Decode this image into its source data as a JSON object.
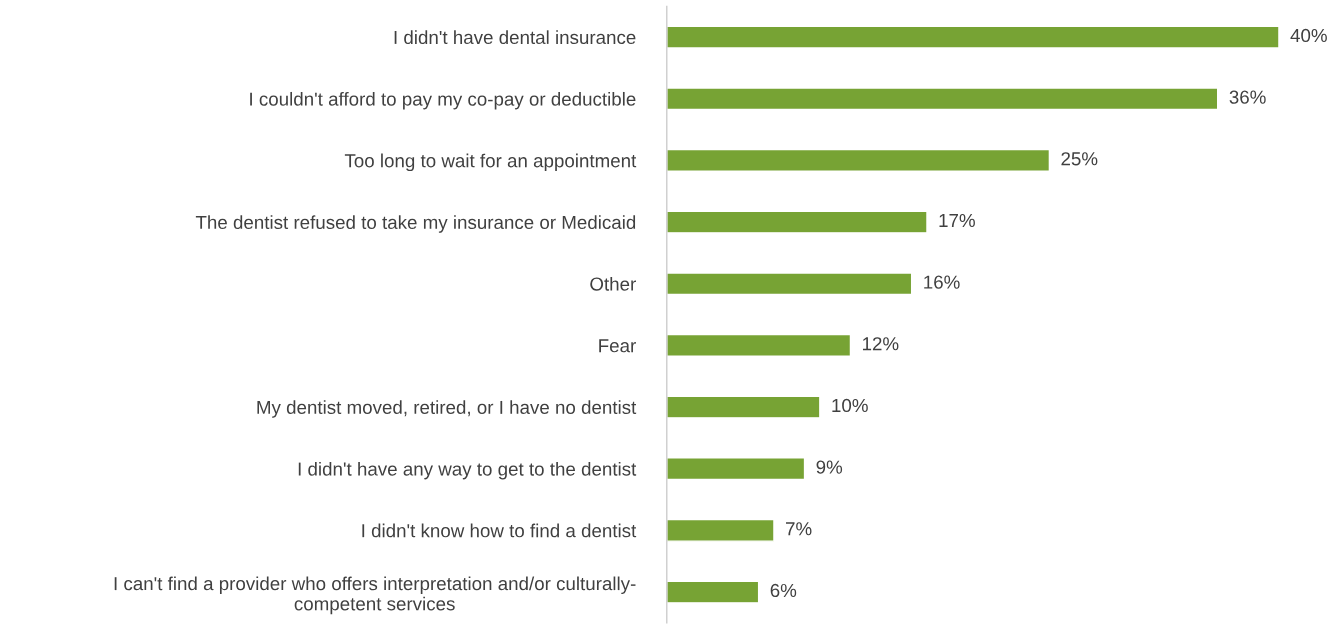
{
  "chart_data": {
    "type": "bar",
    "orientation": "horizontal",
    "categories": [
      "I didn't have dental insurance",
      "I couldn't afford to pay my co-pay or deductible",
      "Too long to wait for an appointment",
      "The dentist refused to take my insurance or Medicaid",
      "Other",
      "Fear",
      "My dentist moved, retired, or I have no dentist",
      "I didn't have any way to get to the dentist",
      "I didn't know how to find a dentist",
      "I can't find a provider who offers interpretation and/or culturally-\ncompetent services"
    ],
    "values": [
      40,
      36,
      25,
      17,
      16,
      12,
      10,
      9,
      7,
      6
    ],
    "value_labels": [
      "40%",
      "36%",
      "25%",
      "17%",
      "16%",
      "12%",
      "10%",
      "9%",
      "7%",
      "6%"
    ],
    "color": "#77a334",
    "grid": false,
    "legend": false,
    "tick_labels": "y"
  }
}
